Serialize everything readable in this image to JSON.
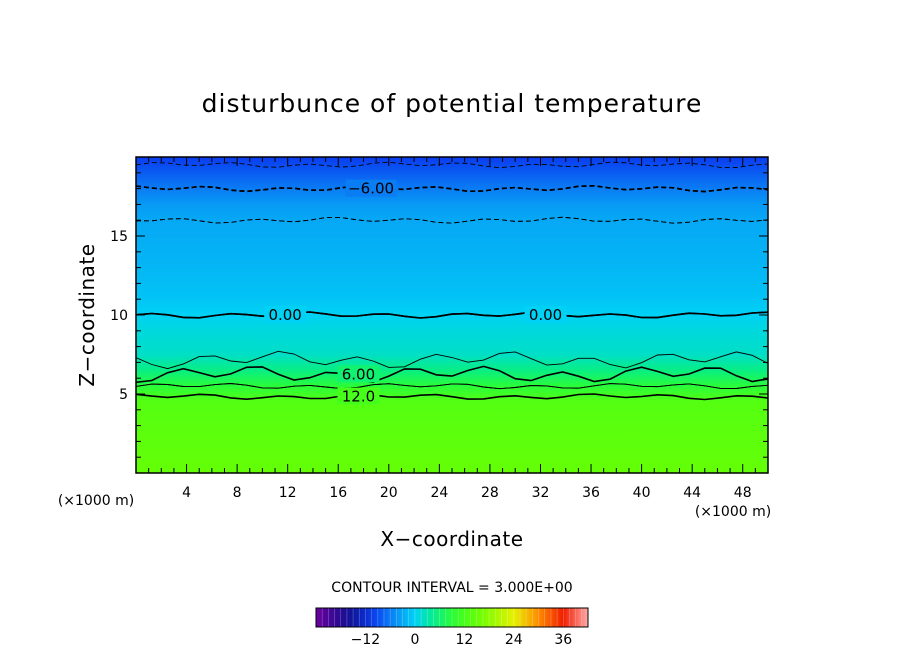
{
  "chart_data": {
    "type": "heatmap",
    "title": "disturbunce of potential temperature",
    "xlabel": "X−coordinate",
    "ylabel": "Z−coordinate",
    "x_unit": "(×1000 m)",
    "y_unit": "(×1000 m)",
    "xlim": [
      0,
      50
    ],
    "ylim": [
      0,
      20
    ],
    "x_ticks": [
      "4",
      "8",
      "12",
      "16",
      "20",
      "24",
      "28",
      "32",
      "36",
      "40",
      "44",
      "48"
    ],
    "y_ticks": [
      "5",
      "10",
      "15"
    ],
    "contour_interval_text": "CONTOUR INTERVAL = 3.000E+00",
    "contour_labels": [
      "−6.00",
      "0.00",
      "0.00",
      "6.00",
      "12.0"
    ],
    "colorbar": {
      "min": -24,
      "max": 42,
      "tick_labels": [
        "−12",
        "0",
        "12",
        "24",
        "36"
      ]
    },
    "field_profile": {
      "z": [
        0,
        4.5,
        5.5,
        6.5,
        7.5,
        9,
        10,
        11,
        13,
        16,
        17,
        18,
        19,
        20
      ],
      "value": [
        15,
        13.5,
        9,
        5,
        2,
        1,
        0,
        -1,
        -2,
        -3,
        -4,
        -6,
        -8,
        -10
      ]
    },
    "contour_levels": [
      -9,
      -6,
      -3,
      0,
      3,
      6,
      9,
      12
    ],
    "colors": {
      "lowest_band": "#0a50f0",
      "upper_band": "#0fa6f2",
      "middle_band": "#04d9f5",
      "transition_band": "#00e6a8",
      "lower_band": "#5cff0a"
    }
  }
}
